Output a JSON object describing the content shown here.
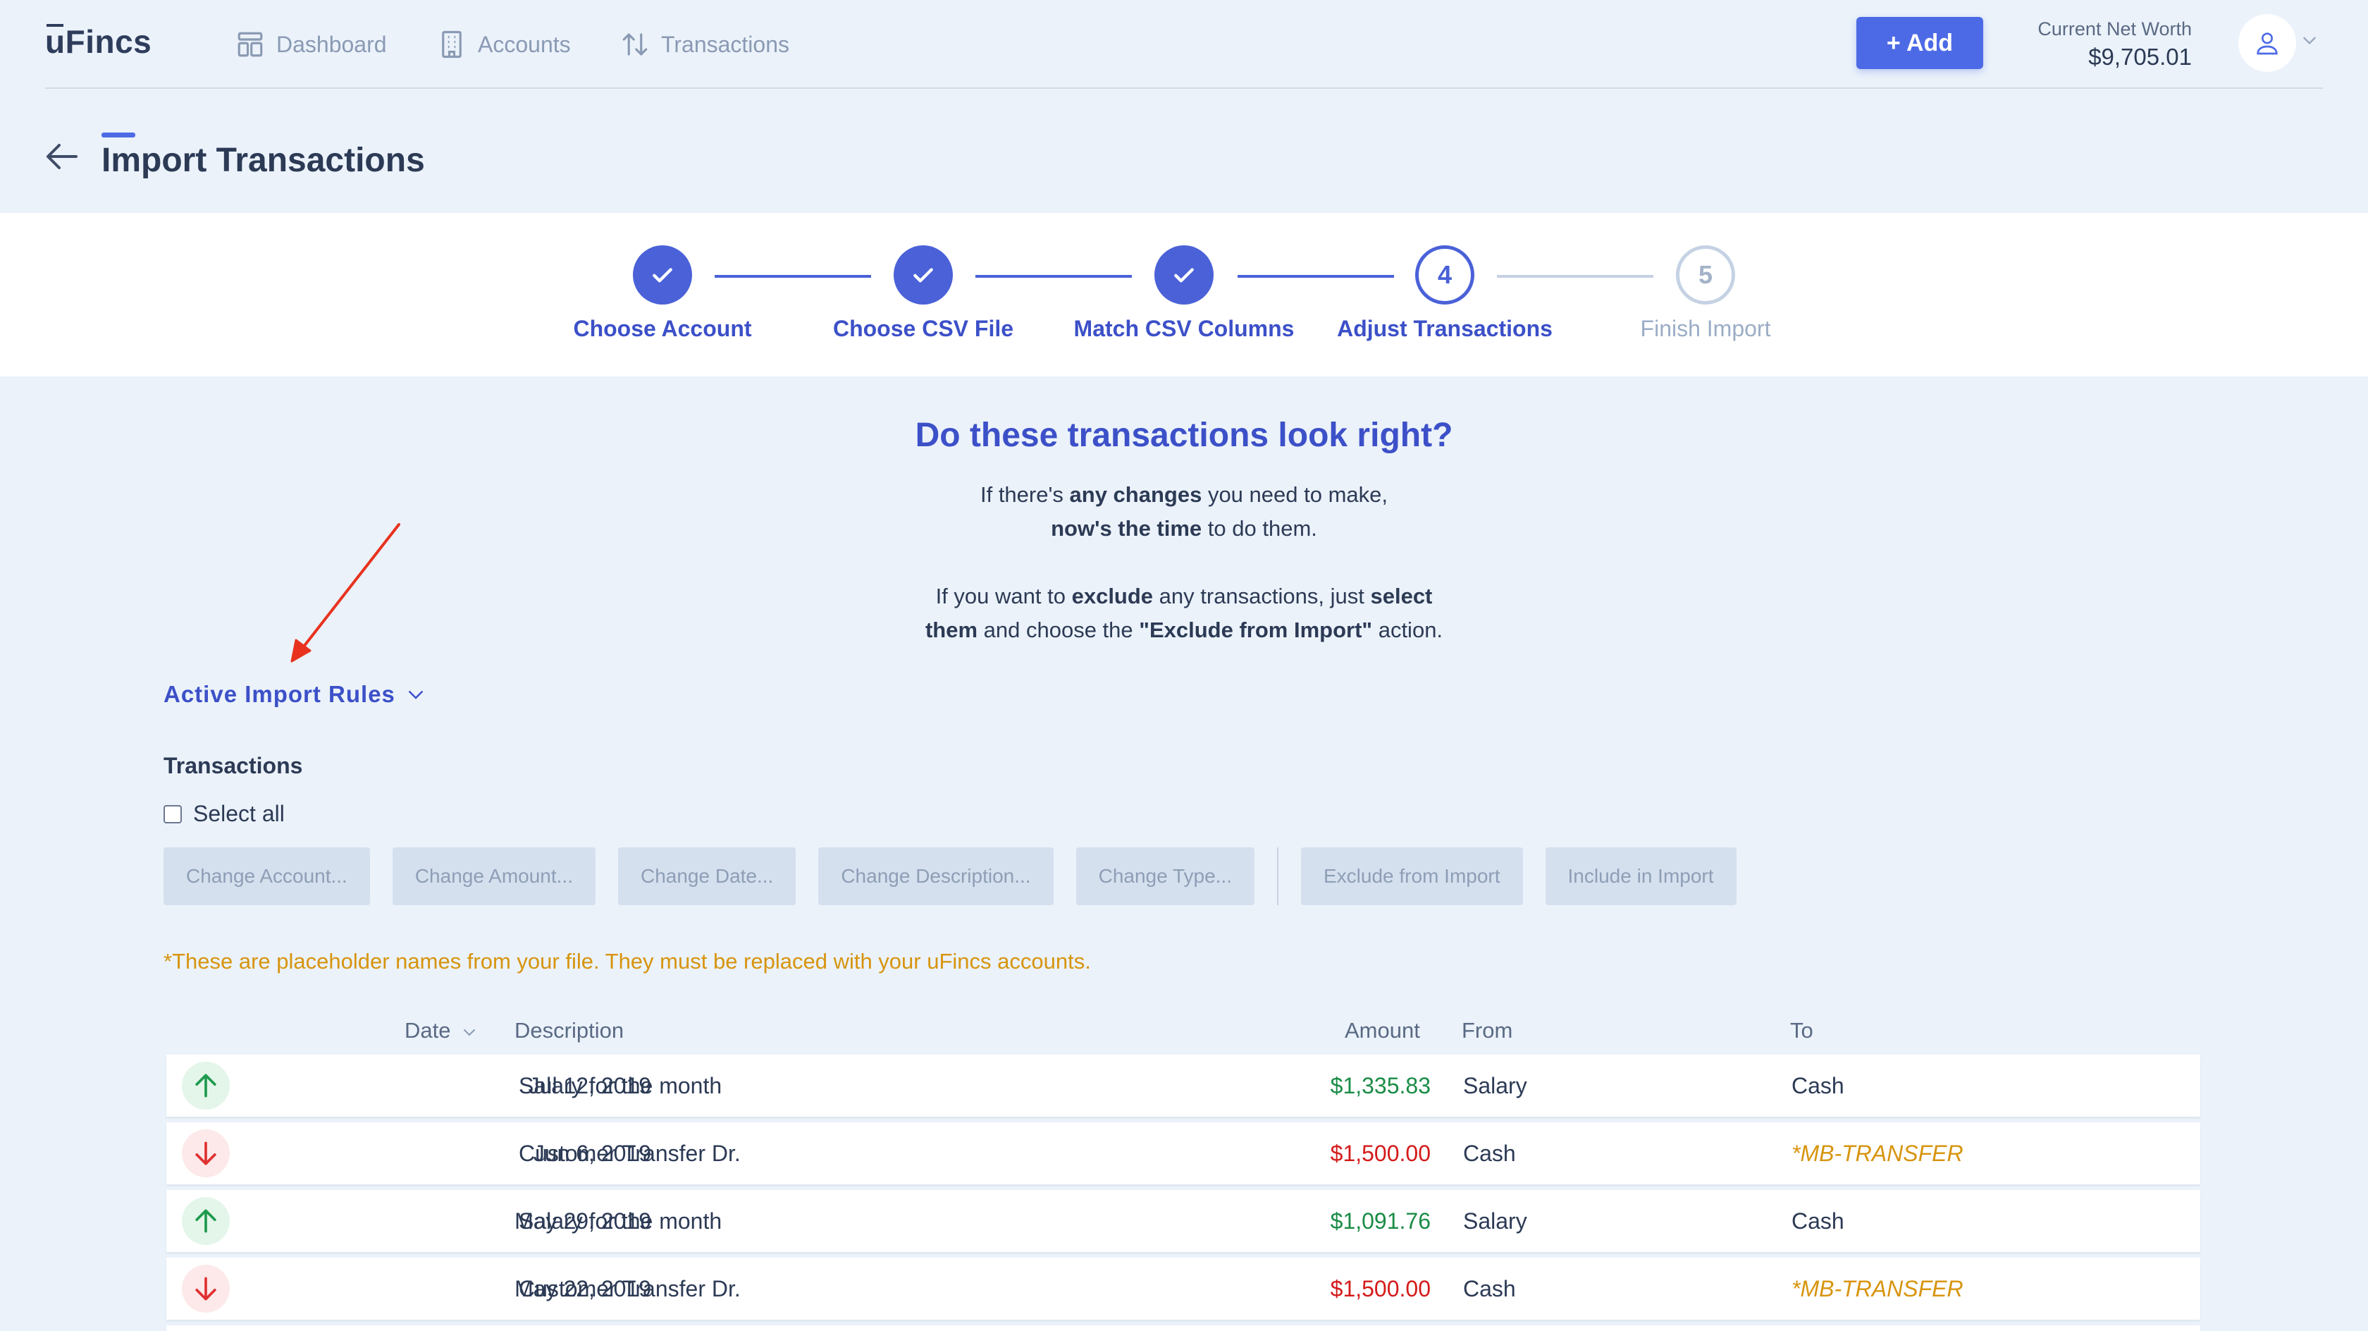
{
  "app": {
    "logo": "uFincs"
  },
  "nav": {
    "items": [
      {
        "label": "Dashboard",
        "icon": "dashboard-icon"
      },
      {
        "label": "Accounts",
        "icon": "building-icon"
      },
      {
        "label": "Transactions",
        "icon": "transfer-arrows-icon"
      }
    ]
  },
  "header": {
    "add_label": "+ Add",
    "net_worth_label": "Current Net Worth",
    "net_worth_value": "$9,705.01"
  },
  "page": {
    "title": "Import Transactions"
  },
  "steps": [
    {
      "label": "Choose Account",
      "state": "done"
    },
    {
      "label": "Choose CSV File",
      "state": "done"
    },
    {
      "label": "Match CSV Columns",
      "state": "done"
    },
    {
      "label": "Adjust Transactions",
      "state": "current",
      "number": "4"
    },
    {
      "label": "Finish Import",
      "state": "todo",
      "number": "5"
    }
  ],
  "intro": {
    "question": "Do these transactions look right?",
    "line1_a": "If there's ",
    "line1_b": "any changes",
    "line1_c": " you need to make,",
    "line2_a": "now's the time",
    "line2_b": " to do them.",
    "line3_a": "If you want to ",
    "line3_b": "exclude",
    "line3_c": " any transactions, just ",
    "line3_d": "select",
    "line4_a": "them",
    "line4_b": " and choose the ",
    "line4_c": "\"Exclude from Import\"",
    "line4_d": " action."
  },
  "rules_toggle": {
    "label": "Active Import Rules"
  },
  "transactions": {
    "title": "Transactions",
    "select_all_label": "Select all",
    "actions": [
      "Change Account...",
      "Change Amount...",
      "Change Date...",
      "Change Description...",
      "Change Type...",
      "Exclude from Import",
      "Include in Import"
    ],
    "note": "*These are placeholder names from your file. They must be replaced with your uFincs accounts.",
    "columns": {
      "date": "Date",
      "description": "Description",
      "amount": "Amount",
      "from": "From",
      "to": "To"
    },
    "rows": [
      {
        "type": "income",
        "date": "Jul 12, 2019",
        "description": "Salary for the month",
        "amount": "$1,335.83",
        "from": "Salary",
        "to": "Cash",
        "to_placeholder": false
      },
      {
        "type": "expense",
        "date": "Jun 6, 2019",
        "description": "Customer Transfer Dr.",
        "amount": "$1,500.00",
        "from": "Cash",
        "to": "*MB-TRANSFER",
        "to_placeholder": true
      },
      {
        "type": "income",
        "date": "May 29, 2019",
        "description": "Salary for the month",
        "amount": "$1,091.76",
        "from": "Salary",
        "to": "Cash",
        "to_placeholder": false
      },
      {
        "type": "expense",
        "date": "May 22, 2019",
        "description": "Customer Transfer Dr.",
        "amount": "$1,500.00",
        "from": "Cash",
        "to": "*MB-TRANSFER",
        "to_placeholder": true
      }
    ]
  },
  "colors": {
    "accent": "#4a61d8",
    "income": "#1a8c46",
    "expense": "#d41a1a",
    "placeholder": "#d7940e",
    "annotation_arrow": "#e8321e"
  }
}
